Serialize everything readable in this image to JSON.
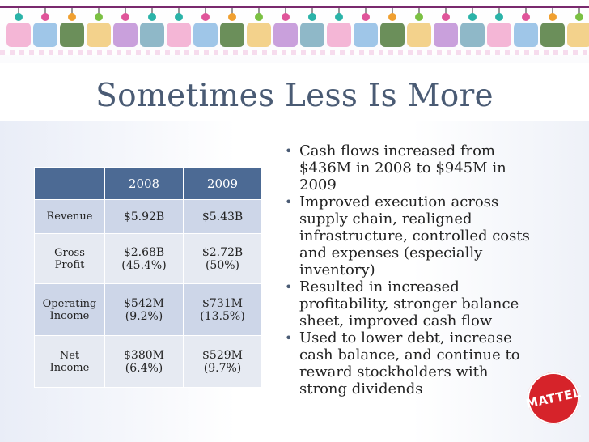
{
  "title": "Sometimes Less Is More",
  "table": {
    "headers": [
      "",
      "2008",
      "2009"
    ],
    "rows": [
      {
        "label": [
          "Revenue"
        ],
        "c2008": [
          "$5.92B"
        ],
        "c2009": [
          "$5.43B"
        ]
      },
      {
        "label": [
          "Gross",
          "Profit"
        ],
        "c2008": [
          "$2.68B",
          "(45.4%)"
        ],
        "c2009": [
          "$2.72B",
          "(50%)"
        ]
      },
      {
        "label": [
          "Operating",
          "Income"
        ],
        "c2008": [
          "$542M",
          "(9.2%)"
        ],
        "c2009": [
          "$731M",
          "(13.5%)"
        ]
      },
      {
        "label": [
          "Net",
          "Income"
        ],
        "c2008": [
          "$380M",
          "(6.4%)"
        ],
        "c2009": [
          "$529M",
          "(9.7%)"
        ]
      }
    ]
  },
  "bullets": [
    [
      "Cash flows increased from",
      "$436M in 2008 to $945M in",
      "2009"
    ],
    [
      "Improved execution across",
      "supply chain, realigned",
      "infrastructure, controlled costs",
      "and expenses (especially",
      "inventory)"
    ],
    [
      "Resulted in increased",
      "profitability, stronger balance",
      "sheet, improved cash flow"
    ],
    [
      "Used to lower debt, increase",
      "cash balance, and continue to",
      "reward stockholders with",
      "strong dividends"
    ]
  ],
  "logo": {
    "text": "MATTEL"
  },
  "colors": {
    "title": "#4a5b74",
    "table_header": "#4c6a94",
    "logo": "#d6232a"
  }
}
